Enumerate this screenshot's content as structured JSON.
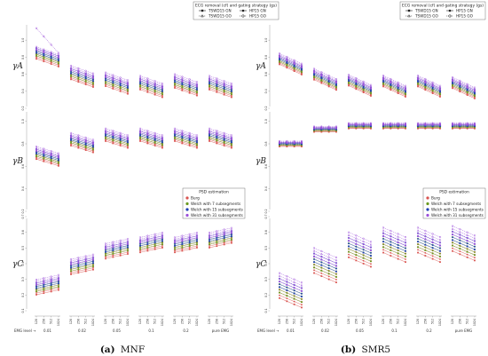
{
  "captions": [
    {
      "label": "(a)",
      "text": "MNF"
    },
    {
      "label": "(b)",
      "text": "SMR5"
    }
  ],
  "colors": {
    "Burg": "#d9534f",
    "Welch7": "#6a9a1f",
    "Welch15": "#1e3fb4",
    "Welch31": "#9b4fd9"
  },
  "legend_ecg": {
    "title": "ECG removal (cf) and gating strategy (gs)",
    "entries": [
      "TSWD15 GN",
      "HP15 GN",
      "TSWD15 GO",
      "HP15 GO"
    ]
  },
  "legend_psd": {
    "title": "PSD estimation",
    "entries": [
      "Burg",
      "Welch with 7 subsegments",
      "Welch with 15 subsegments",
      "Welch with 31 subsegments"
    ]
  },
  "x_axis": {
    "emg_label": "EMG level →",
    "groups": [
      "0.01",
      "0.02",
      "0.05",
      "0.1",
      "0.2",
      "pure EMG"
    ],
    "subticks": [
      "128",
      "256",
      "512",
      "1024"
    ]
  },
  "chart_data": [
    {
      "type": "line",
      "panel": "MNF",
      "rows": [
        {
          "ylabel": "γA",
          "ylim": [
            0.2,
            1.2
          ],
          "ticks": [
            "0.2",
            "0.4",
            "0.6",
            "0.8",
            "1.0"
          ],
          "base": [
            0.86,
            0.62,
            0.54,
            0.5,
            0.52,
            0.5
          ],
          "trend": -0.03,
          "spread": 0.1
        },
        {
          "ylabel": "γB",
          "ylim": [
            0.2,
            1.1
          ],
          "ticks": [
            "0.2",
            "0.4",
            "0.6",
            "0.8",
            "1.0"
          ],
          "base": [
            0.72,
            0.84,
            0.88,
            0.88,
            0.88,
            0.88
          ],
          "trend": -0.02,
          "spread": 0.07
        },
        {
          "ylabel": "γC",
          "ylim": [
            0.1,
            0.7
          ],
          "ticks": [
            "0.1",
            "0.2",
            "0.3",
            "0.4",
            "0.5",
            "0.6",
            "0.7"
          ],
          "base": [
            0.25,
            0.38,
            0.48,
            0.52,
            0.52,
            0.55
          ],
          "trend": 0.01,
          "spread": 0.06
        }
      ]
    },
    {
      "type": "line",
      "panel": "SMR5",
      "rows": [
        {
          "ylabel": "γA",
          "ylim": [
            0.2,
            1.2
          ],
          "ticks": [
            "0.2",
            "0.4",
            "0.6",
            "0.8",
            "1.0"
          ],
          "base": [
            0.78,
            0.6,
            0.53,
            0.52,
            0.52,
            0.5
          ],
          "trend": -0.04,
          "spread": 0.08
        },
        {
          "ylabel": "γB",
          "ylim": [
            0.2,
            1.1
          ],
          "ticks": [
            "0.2",
            "0.4",
            "0.6",
            "0.8",
            "1.0"
          ],
          "base": [
            0.8,
            0.93,
            0.96,
            0.96,
            0.96,
            0.96
          ],
          "trend": 0.0,
          "spread": 0.03
        },
        {
          "ylabel": "γC",
          "ylim": [
            0.1,
            0.7
          ],
          "ticks": [
            "0.1",
            "0.2",
            "0.3",
            "0.4",
            "0.5",
            "0.6",
            "0.7"
          ],
          "base": [
            0.26,
            0.42,
            0.52,
            0.55,
            0.55,
            0.56
          ],
          "trend": -0.02,
          "spread": 0.1
        }
      ]
    }
  ]
}
